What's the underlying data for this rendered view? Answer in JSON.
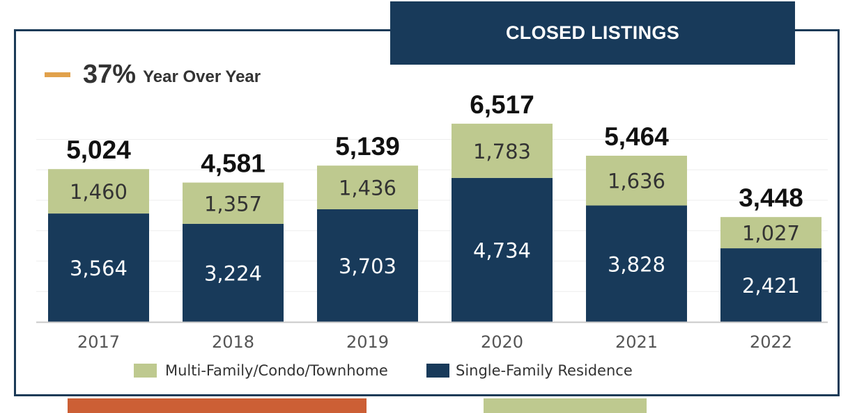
{
  "header": {
    "title": "CLOSED LISTINGS"
  },
  "yoy": {
    "percent": "37%",
    "label": "Year Over Year",
    "swatch_color": "#e1a14b"
  },
  "colors": {
    "multi_family": "#bec98f",
    "single_family": "#183a5a",
    "frame": "#1b3a57",
    "accent_orange": "#cc5f35"
  },
  "chart_data": {
    "type": "bar",
    "stacked": true,
    "categories": [
      "2017",
      "2018",
      "2019",
      "2020",
      "2021",
      "2022"
    ],
    "series": [
      {
        "name": "Single-Family Residence",
        "values": [
          3564,
          3224,
          3703,
          4734,
          3828,
          2421
        ],
        "color": "#183a5a"
      },
      {
        "name": "Multi-Family/Condo/Townhome",
        "values": [
          1460,
          1357,
          1436,
          1783,
          1636,
          1027
        ],
        "color": "#bec98f"
      }
    ],
    "totals": [
      5024,
      4581,
      5139,
      6517,
      5464,
      3448
    ],
    "segment_labels": {
      "single": [
        "3,564",
        "3,224",
        "3,703",
        "4,734",
        "3,828",
        "2,421"
      ],
      "multi": [
        "1,460",
        "1,357",
        "1,436",
        "1,783",
        "1,636",
        "1,027"
      ],
      "totals": [
        "5,024",
        "4,581",
        "5,139",
        "6,517",
        "5,464",
        "3,448"
      ]
    },
    "ylim": [
      0,
      7000
    ],
    "grid": true,
    "legend": {
      "placement": "bottom",
      "entries": [
        "Multi-Family/Condo/Townhome",
        "Single-Family Residence"
      ]
    }
  }
}
